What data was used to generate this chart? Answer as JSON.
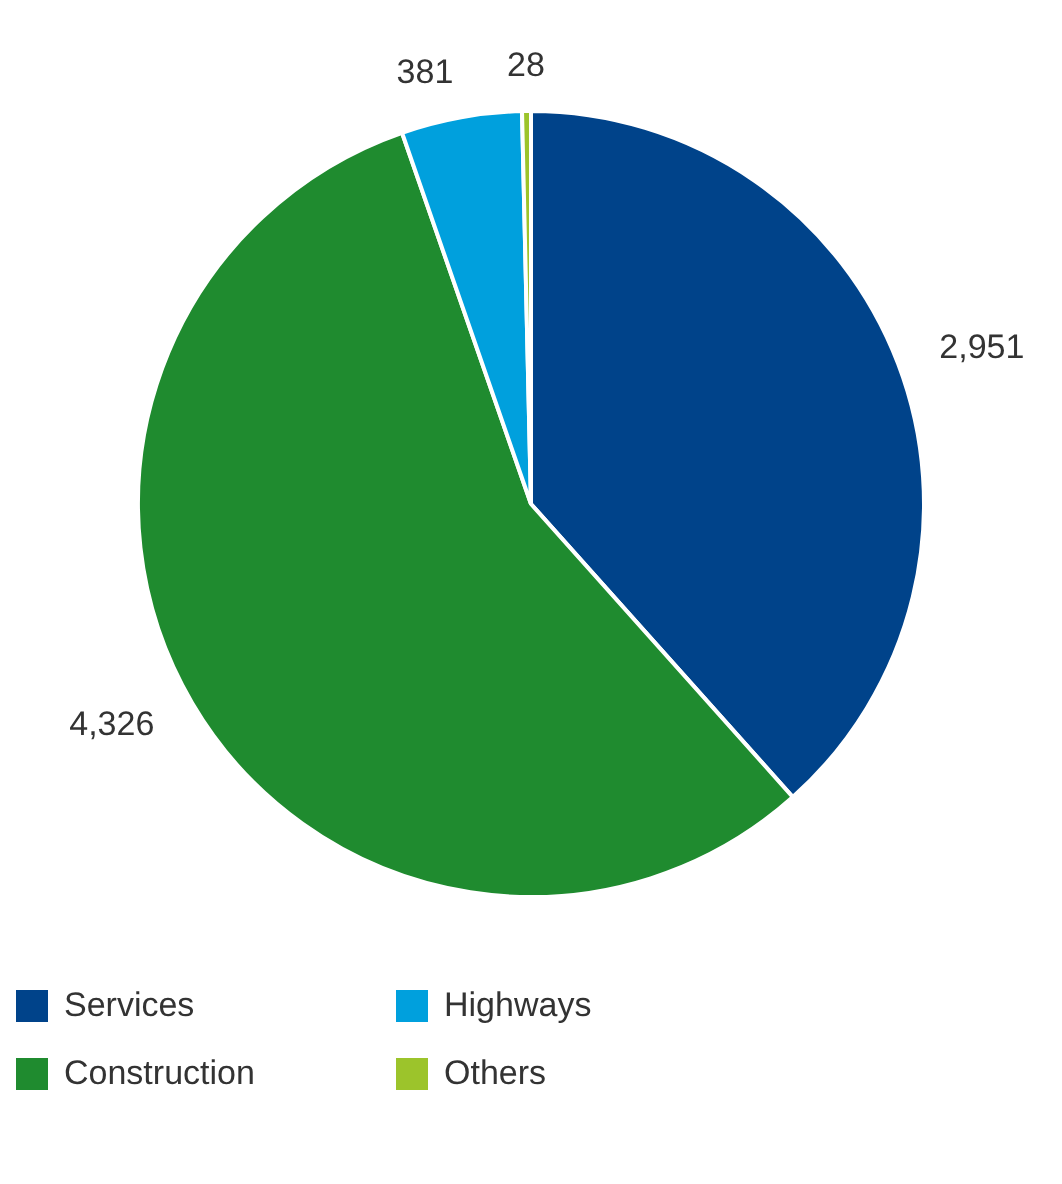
{
  "chart_data": {
    "type": "pie",
    "categories": [
      "Services",
      "Construction",
      "Highways",
      "Others"
    ],
    "values": [
      2951,
      4326,
      381,
      28
    ],
    "colors": [
      "#00438a",
      "#1f8b2f",
      "#00a0dd",
      "#9cc42b"
    ],
    "value_labels": [
      "2,951",
      "4,326",
      "381",
      "28"
    ],
    "legend": "bottom left"
  }
}
